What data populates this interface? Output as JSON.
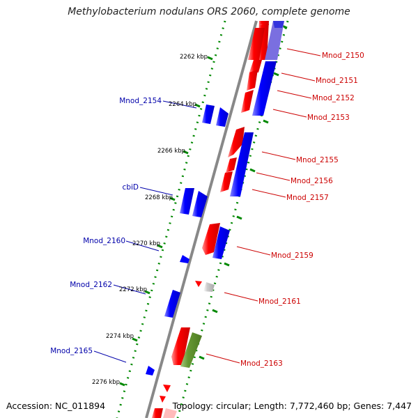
{
  "title": "Methylobacterium nodulans ORS 2060, complete genome",
  "accession": "Accession: NC_011894",
  "topology": "Topology: circular; Length: 7,772,460 bp; Genes: 7,447",
  "ticks": [
    "2262 kbp",
    "2264 kbp",
    "2266 kbp",
    "2268 kbp",
    "2270 kbp",
    "2272 kbp",
    "2274 kbp",
    "2276 kbp"
  ],
  "gene_labels_left": [
    "Mnod_2154",
    "cbiD",
    "Mnod_2160",
    "Mnod_2162",
    "Mnod_2165"
  ],
  "gene_labels_right": [
    "Mnod_2150",
    "Mnod_2151",
    "Mnod_2152",
    "Mnod_2153",
    "Mnod_2155",
    "Mnod_2156",
    "Mnod_2157",
    "Mnod_2159",
    "Mnod_2161",
    "Mnod_2163"
  ],
  "colors": {
    "forward": "#ff0000",
    "reverse": "#0000ff",
    "rna": "#669933",
    "other": "#bbbbbb",
    "backbone": "#888888",
    "dots": "#008800",
    "label_left": "#0000aa",
    "label_right": "#cc0000"
  }
}
